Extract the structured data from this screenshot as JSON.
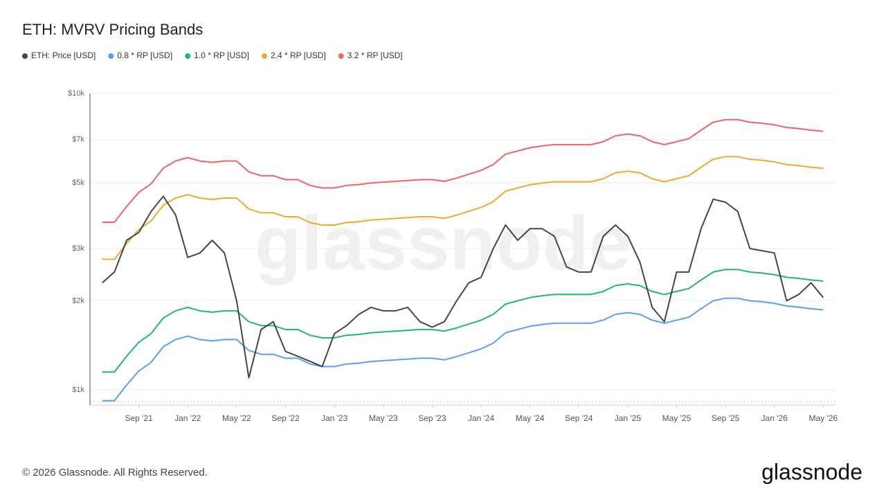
{
  "chart_data": {
    "type": "line",
    "title": "ETH: MVRV Pricing Bands",
    "watermark": "glassnode",
    "log_scale": true,
    "grid": true,
    "x": [
      "2021-06",
      "2021-07",
      "2021-08",
      "2021-09",
      "2021-10",
      "2021-11",
      "2021-12",
      "2022-01",
      "2022-02",
      "2022-03",
      "2022-04",
      "2022-05",
      "2022-06",
      "2022-07",
      "2022-08",
      "2022-09",
      "2022-10",
      "2022-11",
      "2022-12",
      "2023-01",
      "2023-02",
      "2023-03",
      "2023-04",
      "2023-05",
      "2023-06",
      "2023-07",
      "2023-08",
      "2023-09",
      "2023-10",
      "2023-11",
      "2023-12",
      "2024-01",
      "2024-02",
      "2024-03",
      "2024-04",
      "2024-05",
      "2024-06",
      "2024-07",
      "2024-08",
      "2024-09",
      "2024-10",
      "2024-11",
      "2024-12",
      "2025-01",
      "2025-02",
      "2025-03",
      "2025-04",
      "2025-05",
      "2025-06",
      "2025-07",
      "2025-08",
      "2025-09",
      "2025-10",
      "2025-11",
      "2025-12",
      "2026-01",
      "2026-02",
      "2026-03",
      "2026-04",
      "2026-05"
    ],
    "xlim": [
      "2021-05",
      "2026-06"
    ],
    "xticks": [
      {
        "value": "2021-09",
        "label": "Sep '21"
      },
      {
        "value": "2022-01",
        "label": "Jan '22"
      },
      {
        "value": "2022-05",
        "label": "May '22"
      },
      {
        "value": "2022-09",
        "label": "Sep '22"
      },
      {
        "value": "2023-01",
        "label": "Jan '23"
      },
      {
        "value": "2023-05",
        "label": "May '23"
      },
      {
        "value": "2023-09",
        "label": "Sep '23"
      },
      {
        "value": "2024-01",
        "label": "Jan '24"
      },
      {
        "value": "2024-05",
        "label": "May '24"
      },
      {
        "value": "2024-09",
        "label": "Sep '24"
      },
      {
        "value": "2025-01",
        "label": "Jan '25"
      },
      {
        "value": "2025-05",
        "label": "May '25"
      },
      {
        "value": "2025-09",
        "label": "Sep '25"
      },
      {
        "value": "2026-01",
        "label": "Jan '26"
      },
      {
        "value": "2026-05",
        "label": "May '26"
      }
    ],
    "ylim": [
      890,
      10000
    ],
    "yticks": [
      {
        "value": 1000,
        "label": "$1k"
      },
      {
        "value": 2000,
        "label": "$2k"
      },
      {
        "value": 3000,
        "label": "$3k"
      },
      {
        "value": 5000,
        "label": "$5k"
      },
      {
        "value": 7000,
        "label": "$7k"
      },
      {
        "value": 10000,
        "label": "$10k"
      }
    ],
    "series": [
      {
        "name": "ETH: Price [USD]",
        "color": "#444444",
        "values": [
          2300,
          2500,
          3200,
          3400,
          4000,
          4500,
          3900,
          2800,
          2900,
          3200,
          2900,
          2000,
          1100,
          1600,
          1700,
          1350,
          1300,
          1250,
          1200,
          1550,
          1650,
          1800,
          1900,
          1850,
          1850,
          1900,
          1700,
          1630,
          1700,
          2000,
          2300,
          2400,
          3000,
          3600,
          3200,
          3500,
          3500,
          3300,
          2600,
          2500,
          2500,
          3300,
          3600,
          3300,
          2700,
          1900,
          1700,
          2500,
          2500,
          3500,
          4400,
          4300,
          4000,
          3000,
          2950,
          2900,
          2000,
          2100,
          2300,
          2050
        ]
      },
      {
        "name": "0.8 * RP [USD]",
        "color": "#5b9cf6",
        "values": [
          920,
          920,
          1040,
          1160,
          1240,
          1400,
          1480,
          1520,
          1480,
          1464,
          1480,
          1480,
          1360,
          1320,
          1320,
          1280,
          1280,
          1224,
          1200,
          1200,
          1224,
          1232,
          1248,
          1256,
          1264,
          1272,
          1280,
          1280,
          1264,
          1296,
          1336,
          1376,
          1440,
          1560,
          1600,
          1640,
          1664,
          1680,
          1680,
          1680,
          1680,
          1720,
          1800,
          1824,
          1800,
          1720,
          1680,
          1720,
          1760,
          1880,
          2000,
          2040,
          2040,
          2000,
          1984,
          1960,
          1920,
          1904,
          1880,
          1864
        ]
      },
      {
        "name": "1.0 * RP [USD]",
        "color": "#1fb96b",
        "values": [
          1150,
          1150,
          1300,
          1450,
          1550,
          1750,
          1850,
          1900,
          1850,
          1830,
          1850,
          1850,
          1700,
          1650,
          1650,
          1600,
          1600,
          1530,
          1500,
          1500,
          1530,
          1540,
          1560,
          1570,
          1580,
          1590,
          1600,
          1600,
          1580,
          1620,
          1670,
          1720,
          1800,
          1950,
          2000,
          2050,
          2080,
          2100,
          2100,
          2100,
          2100,
          2150,
          2250,
          2280,
          2250,
          2150,
          2100,
          2150,
          2200,
          2350,
          2500,
          2550,
          2550,
          2500,
          2480,
          2450,
          2400,
          2380,
          2350,
          2330
        ]
      },
      {
        "name": "2.4 * RP [USD]",
        "color": "#f0a830",
        "values": [
          2760,
          2760,
          3120,
          3480,
          3720,
          4200,
          4440,
          4560,
          4440,
          4392,
          4440,
          4440,
          4080,
          3960,
          3960,
          3840,
          3840,
          3672,
          3600,
          3600,
          3672,
          3696,
          3744,
          3768,
          3792,
          3816,
          3840,
          3840,
          3792,
          3888,
          4008,
          4128,
          4320,
          4680,
          4800,
          4920,
          4992,
          5040,
          5040,
          5040,
          5040,
          5160,
          5400,
          5472,
          5400,
          5160,
          5040,
          5160,
          5280,
          5640,
          6000,
          6120,
          6120,
          6000,
          5952,
          5880,
          5760,
          5712,
          5640,
          5592
        ]
      },
      {
        "name": "3.2 * RP [USD]",
        "color": "#f06262",
        "values": [
          3680,
          3680,
          4160,
          4640,
          4960,
          5600,
          5920,
          6080,
          5920,
          5856,
          5920,
          5920,
          5440,
          5280,
          5280,
          5120,
          5120,
          4896,
          4800,
          4800,
          4896,
          4928,
          4992,
          5024,
          5056,
          5088,
          5120,
          5120,
          5056,
          5184,
          5344,
          5504,
          5760,
          6240,
          6400,
          6560,
          6656,
          6720,
          6720,
          6720,
          6720,
          6880,
          7200,
          7296,
          7200,
          6880,
          6720,
          6880,
          7040,
          7520,
          8000,
          8160,
          8160,
          8000,
          7936,
          7840,
          7680,
          7616,
          7520,
          7456
        ]
      }
    ]
  },
  "footer": {
    "copyright": "© 2026 Glassnode. All Rights Reserved.",
    "logo": "glassnode"
  }
}
